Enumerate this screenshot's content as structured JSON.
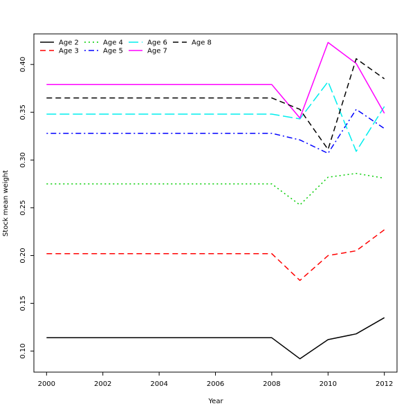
{
  "chart_data": {
    "type": "line",
    "title": "",
    "xlabel": "Year",
    "ylabel": "Stock mean weight",
    "xlim": [
      1999.55,
      2012.45
    ],
    "ylim": [
      0.078,
      0.432
    ],
    "x": [
      2000,
      2001,
      2002,
      2003,
      2004,
      2005,
      2006,
      2007,
      2008,
      2009,
      2010,
      2011,
      2012
    ],
    "xticks": [
      2000,
      2002,
      2004,
      2006,
      2008,
      2010,
      2012
    ],
    "xtick_labels": [
      "2000",
      "2002",
      "2004",
      "2006",
      "2008",
      "2010",
      "2012"
    ],
    "yticks": [
      0.1,
      0.15,
      0.2,
      0.25,
      0.3,
      0.35,
      0.4
    ],
    "ytick_labels": [
      "0.10",
      "0.15",
      "0.20",
      "0.25",
      "0.30",
      "0.35",
      "0.40"
    ],
    "grid": false,
    "legend_position": "top-left",
    "series": [
      {
        "name": "Age 2",
        "color": "#000000",
        "dash": "solid",
        "values": [
          0.114,
          0.114,
          0.114,
          0.114,
          0.114,
          0.114,
          0.114,
          0.114,
          0.114,
          0.092,
          0.112,
          0.118,
          0.135
        ]
      },
      {
        "name": "Age 3",
        "color": "#ff0000",
        "dash": "dashed",
        "values": [
          0.202,
          0.202,
          0.202,
          0.202,
          0.202,
          0.202,
          0.202,
          0.202,
          0.202,
          0.174,
          0.2,
          0.205,
          0.227
        ]
      },
      {
        "name": "Age 4",
        "color": "#00cd00",
        "dash": "dotted",
        "values": [
          0.275,
          0.275,
          0.275,
          0.275,
          0.275,
          0.275,
          0.275,
          0.275,
          0.275,
          0.253,
          0.282,
          0.286,
          0.281
        ]
      },
      {
        "name": "Age 5",
        "color": "#0000ff",
        "dash": "dotdash",
        "values": [
          0.328,
          0.328,
          0.328,
          0.328,
          0.328,
          0.328,
          0.328,
          0.328,
          0.328,
          0.321,
          0.307,
          0.353,
          0.333
        ]
      },
      {
        "name": "Age 6",
        "color": "#00eeee",
        "dash": "longdash",
        "values": [
          0.348,
          0.348,
          0.348,
          0.348,
          0.348,
          0.348,
          0.348,
          0.348,
          0.348,
          0.343,
          0.382,
          0.309,
          0.356
        ]
      },
      {
        "name": "Age 7",
        "color": "#ff00ff",
        "dash": "solid",
        "values": [
          0.379,
          0.379,
          0.379,
          0.379,
          0.379,
          0.379,
          0.379,
          0.379,
          0.379,
          0.344,
          0.423,
          0.401,
          0.349
        ]
      },
      {
        "name": "Age 8",
        "color": "#000000",
        "dash": "dashed",
        "values": [
          0.365,
          0.365,
          0.365,
          0.365,
          0.365,
          0.365,
          0.365,
          0.365,
          0.365,
          0.353,
          0.311,
          0.406,
          0.385
        ]
      }
    ]
  }
}
